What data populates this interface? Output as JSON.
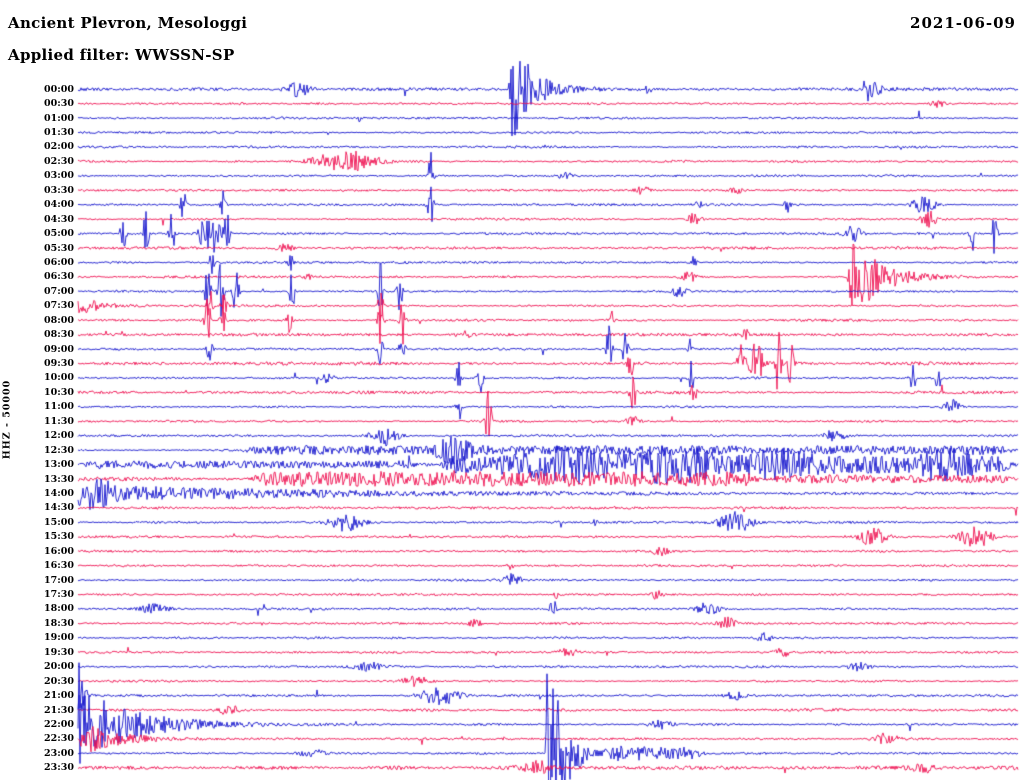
{
  "chart_data": {
    "type": "line",
    "subtype": "helicorder-seismogram",
    "title": "Ancient Plevron, Mesologgi",
    "date_label": "2021-06-09",
    "filter": "WWSSN-SP",
    "filter_label": "Applied filter: WWSSN-SP",
    "scale_label": "HHZ - 50000",
    "row_minutes": 30,
    "x_range_minutes": [
      0,
      30
    ],
    "grid": false,
    "legend": "none",
    "colors": {
      "blue": "#1515cd",
      "red": "#ee1050",
      "text": "#000000",
      "background": "#ffffff"
    },
    "rows": [
      {
        "time": "00:00",
        "color": "blue",
        "noise": 1.2
      },
      {
        "time": "00:30",
        "color": "red"
      },
      {
        "time": "01:00",
        "color": "blue"
      },
      {
        "time": "01:30",
        "color": "blue"
      },
      {
        "time": "02:00",
        "color": "blue"
      },
      {
        "time": "02:30",
        "color": "red"
      },
      {
        "time": "03:00",
        "color": "blue"
      },
      {
        "time": "03:30",
        "color": "red"
      },
      {
        "time": "04:00",
        "color": "blue"
      },
      {
        "time": "04:30",
        "color": "red"
      },
      {
        "time": "05:00",
        "color": "blue"
      },
      {
        "time": "05:30",
        "color": "red",
        "noise": 1.3
      },
      {
        "time": "06:00",
        "color": "blue"
      },
      {
        "time": "06:30",
        "color": "red"
      },
      {
        "time": "07:00",
        "color": "blue"
      },
      {
        "time": "07:30",
        "color": "red"
      },
      {
        "time": "08:00",
        "color": "red"
      },
      {
        "time": "08:30",
        "color": "red",
        "noise": 1.2
      },
      {
        "time": "09:00",
        "color": "blue"
      },
      {
        "time": "09:30",
        "color": "red",
        "noise": 1.3
      },
      {
        "time": "10:00",
        "color": "blue"
      },
      {
        "time": "10:30",
        "color": "red",
        "noise": 1.2
      },
      {
        "time": "11:00",
        "color": "blue"
      },
      {
        "time": "11:30",
        "color": "red"
      },
      {
        "time": "12:00",
        "color": "blue"
      },
      {
        "time": "12:30",
        "color": "blue"
      },
      {
        "time": "13:00",
        "color": "blue"
      },
      {
        "time": "13:30",
        "color": "red",
        "noise": 1.4
      },
      {
        "time": "14:00",
        "color": "blue"
      },
      {
        "time": "14:30",
        "color": "red",
        "noise": 1.1
      },
      {
        "time": "15:00",
        "color": "blue"
      },
      {
        "time": "15:30",
        "color": "red"
      },
      {
        "time": "16:00",
        "color": "red"
      },
      {
        "time": "16:30",
        "color": "red"
      },
      {
        "time": "17:00",
        "color": "blue"
      },
      {
        "time": "17:30",
        "color": "red"
      },
      {
        "time": "18:00",
        "color": "blue"
      },
      {
        "time": "18:30",
        "color": "red"
      },
      {
        "time": "19:00",
        "color": "blue"
      },
      {
        "time": "19:30",
        "color": "red"
      },
      {
        "time": "20:00",
        "color": "blue"
      },
      {
        "time": "20:30",
        "color": "red"
      },
      {
        "time": "21:00",
        "color": "blue"
      },
      {
        "time": "21:30",
        "color": "red",
        "noise": 1.2
      },
      {
        "time": "22:00",
        "color": "blue"
      },
      {
        "time": "22:30",
        "color": "red"
      },
      {
        "time": "23:00",
        "color": "blue"
      },
      {
        "time": "23:30",
        "color": "red",
        "noise": 1.6
      }
    ],
    "events": [
      {
        "row": 0,
        "shape": "burst",
        "pos": 0.235,
        "amp": 7,
        "w": 0.01
      },
      {
        "row": 0,
        "shape": "quake",
        "pos": 0.462,
        "amp": 56,
        "w": 0.02
      },
      {
        "row": 0,
        "shape": "spike",
        "pos": 0.607,
        "amp": 6,
        "w": 0.002
      },
      {
        "row": 0,
        "shape": "quake",
        "pos": 0.838,
        "amp": 13,
        "w": 0.012
      },
      {
        "row": 1,
        "shape": "burst",
        "pos": 0.915,
        "amp": 4,
        "w": 0.005
      },
      {
        "row": 2,
        "shape": "spike",
        "pos": 0.3,
        "amp": 3,
        "w": 0.002
      },
      {
        "row": 5,
        "shape": "burst",
        "pos": 0.285,
        "amp": 11,
        "w": 0.022
      },
      {
        "row": 6,
        "shape": "spike",
        "pos": 0.375,
        "amp": 24,
        "w": 0.002
      },
      {
        "row": 6,
        "shape": "burst",
        "pos": 0.52,
        "amp": 3,
        "w": 0.008
      },
      {
        "row": 7,
        "shape": "burst",
        "pos": 0.6,
        "amp": 4,
        "w": 0.006
      },
      {
        "row": 7,
        "shape": "burst",
        "pos": 0.7,
        "amp": 3,
        "w": 0.005
      },
      {
        "row": 8,
        "shape": "spike",
        "pos": 0.112,
        "amp": 16,
        "w": 0.002
      },
      {
        "row": 8,
        "shape": "spike",
        "pos": 0.155,
        "amp": 18,
        "w": 0.002
      },
      {
        "row": 8,
        "shape": "spike",
        "pos": 0.375,
        "amp": 22,
        "w": 0.002
      },
      {
        "row": 8,
        "shape": "spike",
        "pos": 0.66,
        "amp": 6,
        "w": 0.002
      },
      {
        "row": 8,
        "shape": "spike",
        "pos": 0.755,
        "amp": 9,
        "w": 0.002
      },
      {
        "row": 8,
        "shape": "burst",
        "pos": 0.9,
        "amp": 10,
        "w": 0.008
      },
      {
        "row": 9,
        "shape": "burst",
        "pos": 0.655,
        "amp": 6,
        "w": 0.005
      },
      {
        "row": 9,
        "shape": "burst",
        "pos": 0.905,
        "amp": 8,
        "w": 0.006
      },
      {
        "row": 10,
        "shape": "spike",
        "pos": 0.048,
        "amp": 20,
        "w": 0.002
      },
      {
        "row": 10,
        "shape": "spike",
        "pos": 0.072,
        "amp": 26,
        "w": 0.002
      },
      {
        "row": 10,
        "shape": "spike",
        "pos": 0.1,
        "amp": 22,
        "w": 0.002
      },
      {
        "row": 10,
        "shape": "burst",
        "pos": 0.14,
        "amp": 26,
        "w": 0.007
      },
      {
        "row": 10,
        "shape": "spike",
        "pos": 0.158,
        "amp": 24,
        "w": 0.002
      },
      {
        "row": 10,
        "shape": "burst",
        "pos": 0.825,
        "amp": 8,
        "w": 0.006
      },
      {
        "row": 10,
        "shape": "spike",
        "pos": 0.952,
        "amp": 18,
        "w": 0.002
      },
      {
        "row": 10,
        "shape": "spike",
        "pos": 0.975,
        "amp": 20,
        "w": 0.002
      },
      {
        "row": 11,
        "shape": "burst",
        "pos": 0.22,
        "amp": 4,
        "w": 0.006
      },
      {
        "row": 12,
        "shape": "spike",
        "pos": 0.142,
        "amp": 11,
        "w": 0.002
      },
      {
        "row": 12,
        "shape": "spike",
        "pos": 0.225,
        "amp": 13,
        "w": 0.002
      },
      {
        "row": 12,
        "shape": "spike",
        "pos": 0.655,
        "amp": 6,
        "w": 0.002
      },
      {
        "row": 13,
        "shape": "spike",
        "pos": 0.245,
        "amp": 6,
        "w": 0.002
      },
      {
        "row": 13,
        "shape": "burst",
        "pos": 0.65,
        "amp": 5,
        "w": 0.006
      },
      {
        "row": 13,
        "shape": "quake",
        "pos": 0.822,
        "amp": 46,
        "w": 0.028
      },
      {
        "row": 14,
        "shape": "spike",
        "pos": 0.138,
        "amp": 28,
        "w": 0.002
      },
      {
        "row": 14,
        "shape": "spike",
        "pos": 0.152,
        "amp": 33,
        "w": 0.002
      },
      {
        "row": 14,
        "shape": "spike",
        "pos": 0.168,
        "amp": 26,
        "w": 0.002
      },
      {
        "row": 14,
        "shape": "spike",
        "pos": 0.228,
        "amp": 22,
        "w": 0.002
      },
      {
        "row": 14,
        "shape": "spike",
        "pos": 0.322,
        "amp": 30,
        "w": 0.002
      },
      {
        "row": 14,
        "shape": "spike",
        "pos": 0.342,
        "amp": 28,
        "w": 0.002
      },
      {
        "row": 14,
        "shape": "burst",
        "pos": 0.64,
        "amp": 6,
        "w": 0.005
      },
      {
        "row": 15,
        "shape": "quake",
        "pos": 0.002,
        "amp": 10,
        "w": 0.018
      },
      {
        "row": 15,
        "shape": "spike",
        "pos": 0.14,
        "amp": 20,
        "w": 0.002
      },
      {
        "row": 15,
        "shape": "spike",
        "pos": 0.155,
        "amp": 18,
        "w": 0.002
      },
      {
        "row": 15,
        "shape": "spike",
        "pos": 0.322,
        "amp": 16,
        "w": 0.002
      },
      {
        "row": 16,
        "shape": "spike",
        "pos": 0.138,
        "amp": 24,
        "w": 0.002
      },
      {
        "row": 16,
        "shape": "spike",
        "pos": 0.155,
        "amp": 26,
        "w": 0.002
      },
      {
        "row": 16,
        "shape": "spike",
        "pos": 0.225,
        "amp": 12,
        "w": 0.002
      },
      {
        "row": 16,
        "shape": "spike",
        "pos": 0.322,
        "amp": 27,
        "w": 0.002
      },
      {
        "row": 16,
        "shape": "spike",
        "pos": 0.345,
        "amp": 25,
        "w": 0.002
      },
      {
        "row": 16,
        "shape": "spike",
        "pos": 0.568,
        "amp": 12,
        "w": 0.002
      },
      {
        "row": 17,
        "shape": "burst",
        "pos": 0.41,
        "amp": 4,
        "w": 0.006
      },
      {
        "row": 17,
        "shape": "spike",
        "pos": 0.71,
        "amp": 6,
        "w": 0.002
      },
      {
        "row": 18,
        "shape": "spike",
        "pos": 0.14,
        "amp": 14,
        "w": 0.002
      },
      {
        "row": 18,
        "shape": "spike",
        "pos": 0.322,
        "amp": 19,
        "w": 0.002
      },
      {
        "row": 18,
        "shape": "spike",
        "pos": 0.345,
        "amp": 17,
        "w": 0.002
      },
      {
        "row": 18,
        "shape": "spike",
        "pos": 0.565,
        "amp": 24,
        "w": 0.002
      },
      {
        "row": 18,
        "shape": "spike",
        "pos": 0.582,
        "amp": 22,
        "w": 0.002
      },
      {
        "row": 18,
        "shape": "spike",
        "pos": 0.652,
        "amp": 11,
        "w": 0.002
      },
      {
        "row": 19,
        "shape": "spike",
        "pos": 0.588,
        "amp": 13,
        "w": 0.002
      },
      {
        "row": 19,
        "shape": "spike",
        "pos": 0.705,
        "amp": 30,
        "w": 0.002
      },
      {
        "row": 19,
        "shape": "burst",
        "pos": 0.722,
        "amp": 24,
        "w": 0.006
      },
      {
        "row": 19,
        "shape": "spike",
        "pos": 0.745,
        "amp": 32,
        "w": 0.002
      },
      {
        "row": 19,
        "shape": "spike",
        "pos": 0.758,
        "amp": 24,
        "w": 0.002
      },
      {
        "row": 20,
        "shape": "burst",
        "pos": 0.265,
        "amp": 5,
        "w": 0.005
      },
      {
        "row": 20,
        "shape": "spike",
        "pos": 0.405,
        "amp": 18,
        "w": 0.002
      },
      {
        "row": 20,
        "shape": "spike",
        "pos": 0.428,
        "amp": 15,
        "w": 0.002
      },
      {
        "row": 20,
        "shape": "spike",
        "pos": 0.652,
        "amp": 20,
        "w": 0.002
      },
      {
        "row": 20,
        "shape": "spike",
        "pos": 0.888,
        "amp": 15,
        "w": 0.002
      },
      {
        "row": 20,
        "shape": "spike",
        "pos": 0.915,
        "amp": 13,
        "w": 0.002
      },
      {
        "row": 21,
        "shape": "spike",
        "pos": 0.59,
        "amp": 28,
        "w": 0.002
      },
      {
        "row": 21,
        "shape": "spike",
        "pos": 0.655,
        "amp": 11,
        "w": 0.002
      },
      {
        "row": 22,
        "shape": "spike",
        "pos": 0.405,
        "amp": 15,
        "w": 0.002
      },
      {
        "row": 22,
        "shape": "burst",
        "pos": 0.93,
        "amp": 7,
        "w": 0.006
      },
      {
        "row": 23,
        "shape": "spike",
        "pos": 0.437,
        "amp": 36,
        "w": 0.002
      },
      {
        "row": 23,
        "shape": "burst",
        "pos": 0.59,
        "amp": 5,
        "w": 0.005
      },
      {
        "row": 24,
        "shape": "burst",
        "pos": 0.327,
        "amp": 10,
        "w": 0.01
      },
      {
        "row": 24,
        "shape": "burst",
        "pos": 0.805,
        "amp": 6,
        "w": 0.008
      },
      {
        "row": 25,
        "shape": "band",
        "pos": 0.17,
        "amp": 3.5,
        "w": 0.83
      },
      {
        "row": 25,
        "shape": "burst",
        "pos": 0.4,
        "amp": 12,
        "w": 0.012
      },
      {
        "row": 26,
        "shape": "band",
        "pos": 0.0,
        "amp": 3,
        "w": 0.38
      },
      {
        "row": 26,
        "shape": "band",
        "pos": 0.38,
        "amp": 8,
        "w": 0.62
      },
      {
        "row": 26,
        "shape": "burst",
        "pos": 0.52,
        "amp": 12,
        "w": 0.03
      },
      {
        "row": 26,
        "shape": "burst",
        "pos": 0.63,
        "amp": 13,
        "w": 0.03
      },
      {
        "row": 26,
        "shape": "burst",
        "pos": 0.75,
        "amp": 11,
        "w": 0.02
      },
      {
        "row": 26,
        "shape": "burst",
        "pos": 0.92,
        "amp": 9,
        "w": 0.02
      },
      {
        "row": 27,
        "shape": "band",
        "pos": 0.18,
        "amp": 6,
        "w": 0.55
      },
      {
        "row": 27,
        "shape": "band",
        "pos": 0.73,
        "amp": 3,
        "w": 0.27
      },
      {
        "row": 28,
        "shape": "quake",
        "pos": 0.0,
        "amp": 9,
        "w": 0.25
      },
      {
        "row": 28,
        "shape": "burst",
        "pos": 0.02,
        "amp": 12,
        "w": 0.01
      },
      {
        "row": 30,
        "shape": "burst",
        "pos": 0.285,
        "amp": 9,
        "w": 0.012
      },
      {
        "row": 30,
        "shape": "spike",
        "pos": 0.55,
        "amp": 4,
        "w": 0.002
      },
      {
        "row": 30,
        "shape": "burst",
        "pos": 0.7,
        "amp": 10,
        "w": 0.012
      },
      {
        "row": 31,
        "shape": "burst",
        "pos": 0.845,
        "amp": 9,
        "w": 0.01
      },
      {
        "row": 31,
        "shape": "burst",
        "pos": 0.955,
        "amp": 11,
        "w": 0.012
      },
      {
        "row": 32,
        "shape": "burst",
        "pos": 0.62,
        "amp": 4,
        "w": 0.006
      },
      {
        "row": 33,
        "shape": "spike",
        "pos": 0.46,
        "amp": 5,
        "w": 0.002
      },
      {
        "row": 34,
        "shape": "burst",
        "pos": 0.462,
        "amp": 6,
        "w": 0.006
      },
      {
        "row": 35,
        "shape": "spike",
        "pos": 0.51,
        "amp": 6,
        "w": 0.002
      },
      {
        "row": 35,
        "shape": "burst",
        "pos": 0.615,
        "amp": 4,
        "w": 0.005
      },
      {
        "row": 36,
        "shape": "burst",
        "pos": 0.08,
        "amp": 5,
        "w": 0.01
      },
      {
        "row": 36,
        "shape": "spike",
        "pos": 0.505,
        "amp": 15,
        "w": 0.002
      },
      {
        "row": 36,
        "shape": "burst",
        "pos": 0.67,
        "amp": 7,
        "w": 0.008
      },
      {
        "row": 37,
        "shape": "burst",
        "pos": 0.42,
        "amp": 4,
        "w": 0.006
      },
      {
        "row": 37,
        "shape": "burst",
        "pos": 0.69,
        "amp": 6,
        "w": 0.006
      },
      {
        "row": 38,
        "shape": "burst",
        "pos": 0.73,
        "amp": 5,
        "w": 0.005
      },
      {
        "row": 39,
        "shape": "burst",
        "pos": 0.52,
        "amp": 4,
        "w": 0.008
      },
      {
        "row": 39,
        "shape": "burst",
        "pos": 0.75,
        "amp": 4,
        "w": 0.006
      },
      {
        "row": 40,
        "shape": "burst",
        "pos": 0.31,
        "amp": 4,
        "w": 0.01
      },
      {
        "row": 40,
        "shape": "burst",
        "pos": 0.83,
        "amp": 4,
        "w": 0.008
      },
      {
        "row": 41,
        "shape": "burst",
        "pos": 0.36,
        "amp": 5,
        "w": 0.01
      },
      {
        "row": 42,
        "shape": "quake",
        "pos": 0.0,
        "amp": 62,
        "w": 0.004
      },
      {
        "row": 42,
        "shape": "burst",
        "pos": 0.385,
        "amp": 9,
        "w": 0.014
      },
      {
        "row": 42,
        "shape": "burst",
        "pos": 0.7,
        "amp": 4,
        "w": 0.008
      },
      {
        "row": 43,
        "shape": "burst",
        "pos": 0.16,
        "amp": 5,
        "w": 0.008
      },
      {
        "row": 44,
        "shape": "quake",
        "pos": 0.0,
        "amp": 40,
        "w": 0.055
      },
      {
        "row": 44,
        "shape": "burst",
        "pos": 0.62,
        "amp": 5,
        "w": 0.008
      },
      {
        "row": 45,
        "shape": "quake",
        "pos": 0.004,
        "amp": 16,
        "w": 0.04
      },
      {
        "row": 45,
        "shape": "burst",
        "pos": 0.86,
        "amp": 6,
        "w": 0.008
      },
      {
        "row": 46,
        "shape": "burst",
        "pos": 0.25,
        "amp": 4,
        "w": 0.01
      },
      {
        "row": 46,
        "shape": "quake",
        "pos": 0.5,
        "amp": 112,
        "w": 0.016
      },
      {
        "row": 46,
        "shape": "band",
        "pos": 0.55,
        "amp": 6,
        "w": 0.12
      },
      {
        "row": 47,
        "shape": "burst",
        "pos": 0.49,
        "amp": 6,
        "w": 0.012
      },
      {
        "row": 47,
        "shape": "burst",
        "pos": 0.9,
        "amp": 4,
        "w": 0.008
      }
    ]
  }
}
